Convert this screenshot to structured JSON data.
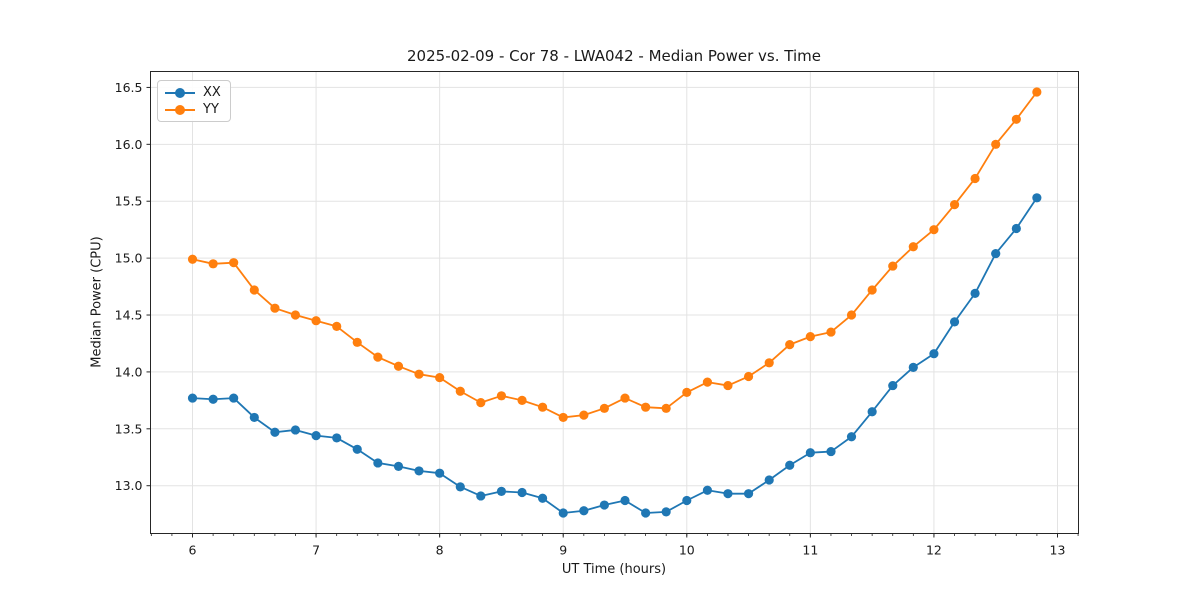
{
  "chart_data": {
    "type": "line",
    "title": "2025-02-09 - Cor 78 - LWA042 - Median Power vs. Time",
    "xlabel": "UT Time (hours)",
    "ylabel": "Median Power (CPU)",
    "xlim": [
      5.66,
      13.17
    ],
    "ylim": [
      12.58,
      16.64
    ],
    "xticks": [
      6,
      7,
      8,
      9,
      10,
      11,
      12,
      13
    ],
    "xtick_labels": [
      "6",
      "7",
      "8",
      "9",
      "10",
      "11",
      "12",
      "13"
    ],
    "yticks": [
      13.0,
      13.5,
      14.0,
      14.5,
      15.0,
      15.5,
      16.0,
      16.5
    ],
    "ytick_labels": [
      "13.0",
      "13.5",
      "14.0",
      "14.5",
      "15.0",
      "15.5",
      "16.0",
      "16.5"
    ],
    "x_minor_step": 0.166667,
    "grid": true,
    "legend_position": "upper-left",
    "marker": "circle",
    "x": [
      6.0,
      6.167,
      6.333,
      6.5,
      6.667,
      6.833,
      7.0,
      7.167,
      7.333,
      7.5,
      7.667,
      7.833,
      8.0,
      8.167,
      8.333,
      8.5,
      8.667,
      8.833,
      9.0,
      9.167,
      9.333,
      9.5,
      9.667,
      9.833,
      10.0,
      10.167,
      10.333,
      10.5,
      10.667,
      10.833,
      11.0,
      11.167,
      11.333,
      11.5,
      11.667,
      11.833,
      12.0,
      12.167,
      12.333,
      12.5,
      12.667,
      12.833
    ],
    "series": [
      {
        "name": "XX",
        "color": "#1f77b4",
        "values": [
          13.77,
          13.76,
          13.77,
          13.6,
          13.47,
          13.49,
          13.44,
          13.42,
          13.32,
          13.2,
          13.17,
          13.13,
          13.11,
          12.99,
          12.91,
          12.95,
          12.94,
          12.89,
          12.76,
          12.78,
          12.83,
          12.87,
          12.76,
          12.77,
          12.87,
          12.96,
          12.93,
          12.93,
          13.05,
          13.18,
          13.29,
          13.3,
          13.43,
          13.65,
          13.88,
          14.04,
          14.16,
          14.44,
          14.69,
          15.04,
          15.26,
          15.53
        ]
      },
      {
        "name": "YY",
        "color": "#ff7f0e",
        "values": [
          14.99,
          14.95,
          14.96,
          14.72,
          14.56,
          14.5,
          14.45,
          14.4,
          14.26,
          14.13,
          14.05,
          13.98,
          13.95,
          13.83,
          13.73,
          13.79,
          13.75,
          13.69,
          13.6,
          13.62,
          13.68,
          13.77,
          13.69,
          13.68,
          13.82,
          13.91,
          13.88,
          13.96,
          14.08,
          14.24,
          14.31,
          14.35,
          14.5,
          14.72,
          14.93,
          15.1,
          15.25,
          15.47,
          15.7,
          16.0,
          16.22,
          16.46
        ]
      }
    ],
    "colors": {
      "grid": "#e3e3e3",
      "spine": "#262626",
      "tick_text": "#1a1a1a",
      "background": "#ffffff"
    }
  }
}
